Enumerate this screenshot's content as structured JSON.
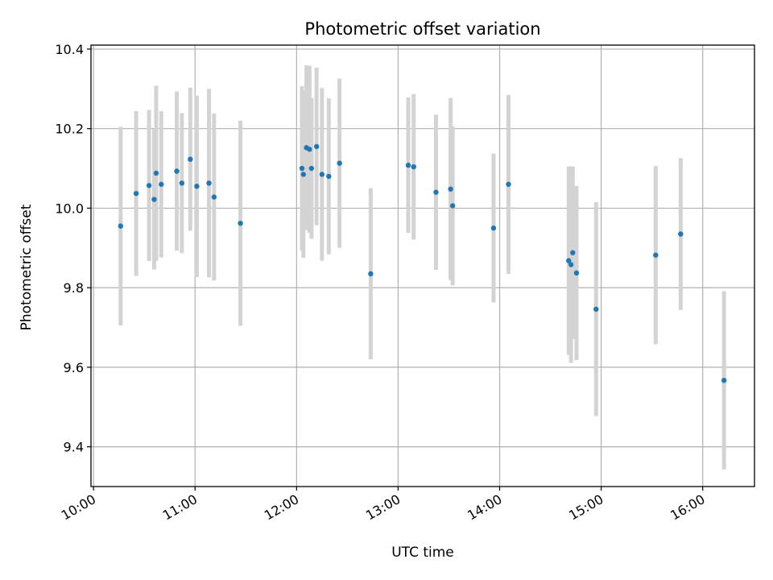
{
  "chart_data": {
    "type": "scatter",
    "title": "Photometric offset variation",
    "xlabel": "UTC time",
    "ylabel": "Photometric offset",
    "x_unit": "hours",
    "xlim": [
      9.975,
      16.51
    ],
    "ylim": [
      9.3,
      10.41
    ],
    "x_ticks": [
      {
        "value": 10,
        "label": "10:00"
      },
      {
        "value": 11,
        "label": "11:00"
      },
      {
        "value": 12,
        "label": "12:00"
      },
      {
        "value": 13,
        "label": "13:00"
      },
      {
        "value": 14,
        "label": "14:00"
      },
      {
        "value": 15,
        "label": "15:00"
      },
      {
        "value": 16,
        "label": "16:00"
      }
    ],
    "y_ticks": [
      {
        "value": 9.4,
        "label": "9.4"
      },
      {
        "value": 9.6,
        "label": "9.6"
      },
      {
        "value": 9.8,
        "label": "9.8"
      },
      {
        "value": 10.0,
        "label": "10.0"
      },
      {
        "value": 10.2,
        "label": "10.2"
      },
      {
        "value": 10.4,
        "label": "10.4"
      }
    ],
    "grid": true,
    "legend": "none",
    "marker_color": "#1f77b4",
    "errorbar_color": "#d3d3d3",
    "points": [
      {
        "x": 10.267,
        "y": 9.955,
        "err": 0.25
      },
      {
        "x": 10.42,
        "y": 10.037,
        "err": 0.207
      },
      {
        "x": 10.547,
        "y": 10.057,
        "err": 0.19
      },
      {
        "x": 10.597,
        "y": 10.022,
        "err": 0.176
      },
      {
        "x": 10.617,
        "y": 10.088,
        "err": 0.22
      },
      {
        "x": 10.667,
        "y": 10.06,
        "err": 0.184
      },
      {
        "x": 10.82,
        "y": 10.093,
        "err": 0.2
      },
      {
        "x": 10.87,
        "y": 10.063,
        "err": 0.176
      },
      {
        "x": 10.953,
        "y": 10.123,
        "err": 0.18
      },
      {
        "x": 11.017,
        "y": 10.055,
        "err": 0.228
      },
      {
        "x": 11.137,
        "y": 10.063,
        "err": 0.237
      },
      {
        "x": 11.187,
        "y": 10.028,
        "err": 0.21
      },
      {
        "x": 11.447,
        "y": 9.962,
        "err": 0.258
      },
      {
        "x": 12.053,
        "y": 10.1,
        "err": 0.207
      },
      {
        "x": 12.067,
        "y": 10.085,
        "err": 0.21
      },
      {
        "x": 12.097,
        "y": 10.152,
        "err": 0.207
      },
      {
        "x": 12.127,
        "y": 10.148,
        "err": 0.21
      },
      {
        "x": 12.147,
        "y": 10.1,
        "err": 0.177
      },
      {
        "x": 12.197,
        "y": 10.155,
        "err": 0.198
      },
      {
        "x": 12.25,
        "y": 10.085,
        "err": 0.217
      },
      {
        "x": 12.317,
        "y": 10.08,
        "err": 0.196
      },
      {
        "x": 12.423,
        "y": 10.113,
        "err": 0.213
      },
      {
        "x": 12.73,
        "y": 9.835,
        "err": 0.215
      },
      {
        "x": 13.1,
        "y": 10.108,
        "err": 0.17
      },
      {
        "x": 13.153,
        "y": 10.104,
        "err": 0.183
      },
      {
        "x": 13.373,
        "y": 10.04,
        "err": 0.195
      },
      {
        "x": 13.517,
        "y": 10.048,
        "err": 0.229
      },
      {
        "x": 13.537,
        "y": 10.006,
        "err": 0.2
      },
      {
        "x": 13.94,
        "y": 9.95,
        "err": 0.187
      },
      {
        "x": 14.087,
        "y": 10.06,
        "err": 0.225
      },
      {
        "x": 14.68,
        "y": 9.868,
        "err": 0.237
      },
      {
        "x": 14.703,
        "y": 9.858,
        "err": 0.247
      },
      {
        "x": 14.72,
        "y": 9.888,
        "err": 0.217
      },
      {
        "x": 14.757,
        "y": 9.837,
        "err": 0.219
      },
      {
        "x": 14.95,
        "y": 9.746,
        "err": 0.269
      },
      {
        "x": 15.537,
        "y": 9.882,
        "err": 0.224
      },
      {
        "x": 15.783,
        "y": 9.935,
        "err": 0.191
      },
      {
        "x": 16.21,
        "y": 9.567,
        "err": 0.224
      }
    ]
  }
}
